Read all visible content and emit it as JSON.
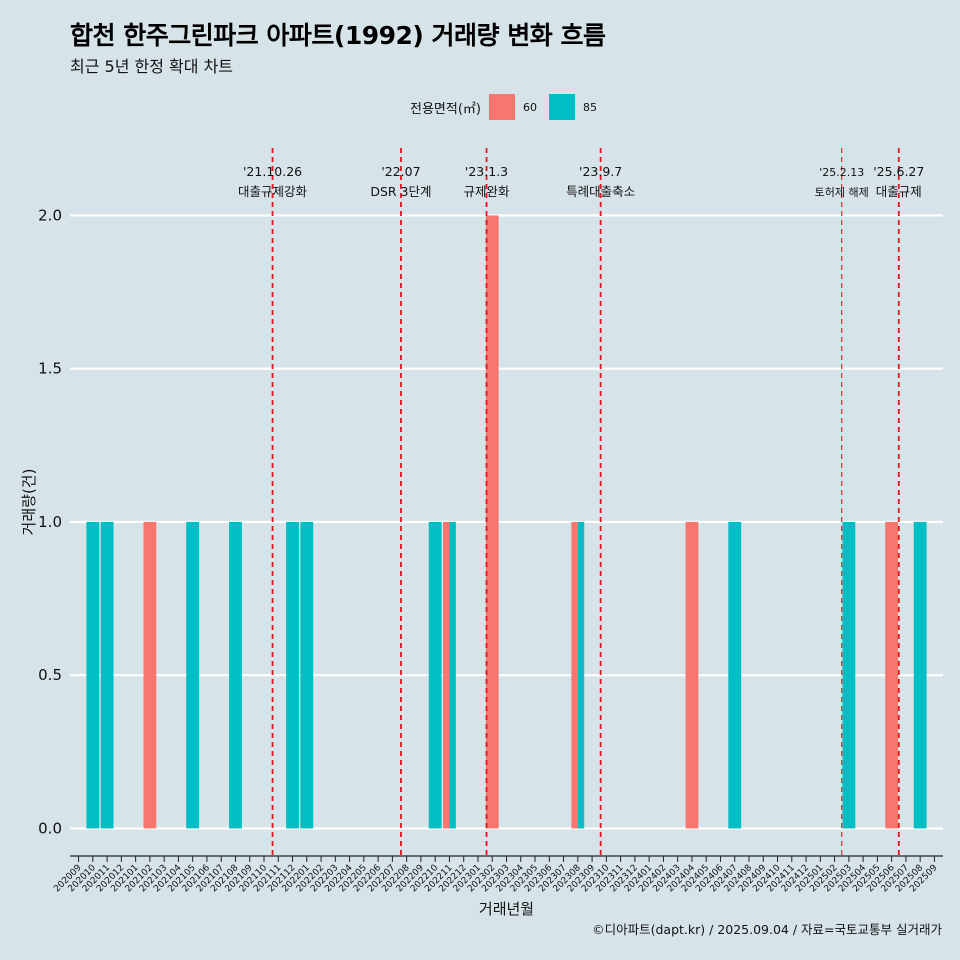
{
  "title": "합천 한주그린파크 아파트(1992) 거래량 변화 흐름",
  "subtitle": "최근 5년 한정 확대 차트",
  "caption": "©디아파트(dapt.kr) / 2025.09.04 / 자료=국토교통부 실거래가",
  "legend": {
    "title": "전용면적(㎡)",
    "items": [
      {
        "label": "60",
        "color": "#f8766d"
      },
      {
        "label": "85",
        "color": "#00bfc4"
      }
    ]
  },
  "chart_data": {
    "type": "bar",
    "xlabel": "거래년월",
    "ylabel": "거래량(건)",
    "ylim": [
      -0.09,
      2.22
    ],
    "yticks": [
      "0.0",
      "0.5",
      "1.0",
      "1.5",
      "2.0"
    ],
    "grid": true,
    "legend_position": "top",
    "categories": [
      "202009",
      "202010",
      "202011",
      "202012",
      "202101",
      "202102",
      "202103",
      "202104",
      "202105",
      "202106",
      "202107",
      "202108",
      "202109",
      "202110",
      "202111",
      "202112",
      "202201",
      "202202",
      "202203",
      "202204",
      "202205",
      "202206",
      "202207",
      "202208",
      "202209",
      "202210",
      "202211",
      "202212",
      "202301",
      "202302",
      "202303",
      "202304",
      "202305",
      "202306",
      "202307",
      "202308",
      "202309",
      "202310",
      "202311",
      "202312",
      "202401",
      "202402",
      "202403",
      "202404",
      "202405",
      "202406",
      "202407",
      "202408",
      "202409",
      "202410",
      "202411",
      "202412",
      "202501",
      "202502",
      "202503",
      "202504",
      "202505",
      "202506",
      "202507",
      "202508",
      "202509"
    ],
    "series": [
      {
        "name": "60",
        "color": "#f8766d",
        "points": [
          {
            "x": "202102",
            "y": 1
          },
          {
            "x": "202211",
            "y": 1
          },
          {
            "x": "202302",
            "y": 2
          },
          {
            "x": "202308",
            "y": 1
          },
          {
            "x": "202404",
            "y": 1
          },
          {
            "x": "202506",
            "y": 1
          }
        ]
      },
      {
        "name": "85",
        "color": "#00bfc4",
        "points": [
          {
            "x": "202010",
            "y": 1
          },
          {
            "x": "202011",
            "y": 1
          },
          {
            "x": "202105",
            "y": 1
          },
          {
            "x": "202108",
            "y": 1
          },
          {
            "x": "202112",
            "y": 1
          },
          {
            "x": "202201",
            "y": 1
          },
          {
            "x": "202210",
            "y": 1
          },
          {
            "x": "202211",
            "y": 1
          },
          {
            "x": "202308",
            "y": 1
          },
          {
            "x": "202407",
            "y": 1
          },
          {
            "x": "202503",
            "y": 1
          },
          {
            "x": "202508",
            "y": 1
          }
        ]
      }
    ],
    "events": [
      {
        "date": "'21.10.26",
        "label": "대출규제강화",
        "x": 13.6,
        "major": true
      },
      {
        "date": "'22.07",
        "label": "DSR 3단계",
        "x": 22.6,
        "major": true
      },
      {
        "date": "'23.1.3",
        "label": "규제완화",
        "x": 28.6,
        "major": true
      },
      {
        "date": "'23.9.7",
        "label": "특례대출축소",
        "x": 36.6,
        "major": true
      },
      {
        "date": "'25.2.13",
        "label": "토허제 해제",
        "x": 53.5,
        "major": false
      },
      {
        "date": "'25.6.27",
        "label": "대출규제",
        "x": 57.5,
        "major": true
      }
    ]
  }
}
